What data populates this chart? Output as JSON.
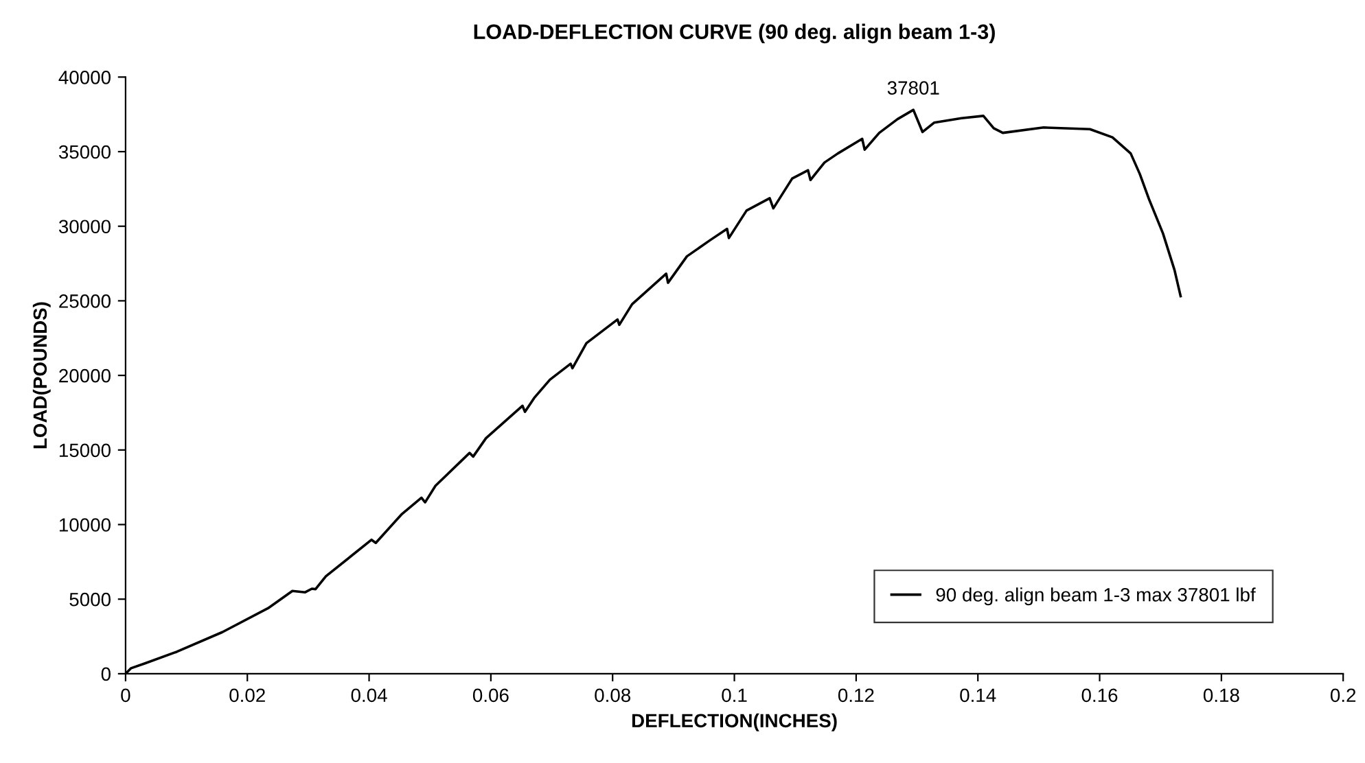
{
  "chart_data": {
    "type": "line",
    "title": "LOAD-DEFLECTION CURVE (90 deg. align beam 1-3)",
    "xlabel": "DEFLECTION(INCHES)",
    "ylabel": "LOAD(POUNDS)",
    "xlim": [
      0,
      0.2
    ],
    "xticks": [
      0,
      0.02,
      0.04,
      0.06,
      0.08,
      0.1,
      0.12,
      0.14,
      0.16,
      0.18,
      0.2
    ],
    "ylim": [
      0,
      40000
    ],
    "yticks": [
      0,
      5000,
      10000,
      15000,
      20000,
      25000,
      30000,
      35000,
      40000
    ],
    "grid": false,
    "legend": "bottom right",
    "marker": "none",
    "line_style": "solid",
    "annotations": [
      {
        "text": "37801",
        "x": 0.1294,
        "y": 37801
      }
    ],
    "series": [
      {
        "name": "90 deg. align beam 1-3 max 37801 lbf",
        "color": "#000000",
        "x": [
          0,
          0.0009,
          0.0032,
          0.0084,
          0.0159,
          0.0234,
          0.0274,
          0.0295,
          0.0306,
          0.0312,
          0.0329,
          0.0404,
          0.0411,
          0.0453,
          0.0486,
          0.0492,
          0.0509,
          0.0565,
          0.0571,
          0.0592,
          0.0652,
          0.0656,
          0.0671,
          0.0697,
          0.0731,
          0.0734,
          0.0757,
          0.0808,
          0.0811,
          0.0832,
          0.0888,
          0.0891,
          0.0922,
          0.096,
          0.0988,
          0.0991,
          0.102,
          0.1058,
          0.1064,
          0.1095,
          0.1121,
          0.1125,
          0.1148,
          0.117,
          0.121,
          0.1214,
          0.1238,
          0.1268,
          0.1294,
          0.1309,
          0.1328,
          0.1373,
          0.1409,
          0.1426,
          0.1441,
          0.1508,
          0.1584,
          0.1621,
          0.1651,
          0.1666,
          0.1681,
          0.1704,
          0.1723,
          0.1733
        ],
        "values": [
          0,
          370,
          700,
          1470,
          2790,
          4390,
          5550,
          5460,
          5700,
          5670,
          6530,
          8980,
          8770,
          10670,
          11800,
          11490,
          12600,
          14800,
          14560,
          15790,
          17960,
          17560,
          18480,
          19710,
          20780,
          20480,
          22160,
          23750,
          23390,
          24770,
          26820,
          26210,
          27980,
          29060,
          29820,
          29210,
          31050,
          31880,
          31200,
          33200,
          33750,
          33100,
          34270,
          34880,
          35860,
          35130,
          36260,
          37180,
          37801,
          36320,
          36940,
          37240,
          37400,
          36570,
          36260,
          36620,
          36510,
          35960,
          34880,
          33500,
          31820,
          29520,
          27060,
          25310
        ]
      }
    ]
  }
}
